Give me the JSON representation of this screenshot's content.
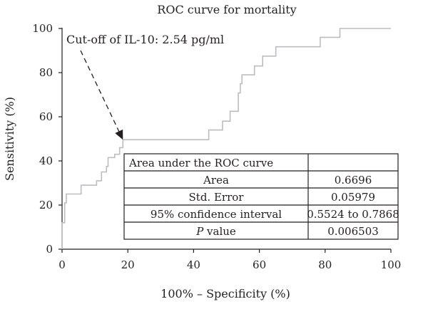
{
  "chart_data": {
    "type": "line",
    "title": "ROC curve for mortality",
    "xlabel": "100% – Specificity (%)",
    "ylabel": "Sensitivity (%)",
    "xlim": [
      0,
      100
    ],
    "ylim": [
      0,
      100
    ],
    "xticks": [
      "0",
      "20",
      "40",
      "60",
      "80",
      "100"
    ],
    "yticks": [
      "0",
      "20",
      "40",
      "60",
      "80",
      "100"
    ],
    "grid": false,
    "line_color": "#bcbdc0",
    "series": [
      {
        "points": [
          [
            0,
            0
          ],
          [
            0,
            12
          ],
          [
            0.8,
            12
          ],
          [
            0.8,
            21
          ],
          [
            1.3,
            21
          ],
          [
            1.3,
            25
          ],
          [
            5.8,
            25
          ],
          [
            5.8,
            29
          ],
          [
            10.5,
            29
          ],
          [
            10.5,
            31
          ],
          [
            12,
            31
          ],
          [
            12,
            35
          ],
          [
            13.5,
            35
          ],
          [
            13.5,
            37.5
          ],
          [
            14,
            37.5
          ],
          [
            14,
            41.5
          ],
          [
            16,
            41.5
          ],
          [
            16,
            43
          ],
          [
            17.5,
            43
          ],
          [
            17.5,
            46
          ],
          [
            18.5,
            46
          ],
          [
            18.5,
            49.6
          ],
          [
            44.6,
            49.6
          ],
          [
            44.6,
            54
          ],
          [
            48.8,
            54
          ],
          [
            48.8,
            58
          ],
          [
            51.1,
            58
          ],
          [
            51.1,
            62.5
          ],
          [
            53.6,
            62.5
          ],
          [
            53.6,
            70.8
          ],
          [
            54.2,
            70.8
          ],
          [
            54.2,
            75
          ],
          [
            54.7,
            75
          ],
          [
            54.7,
            79
          ],
          [
            58.5,
            79
          ],
          [
            58.5,
            83
          ],
          [
            61,
            83
          ],
          [
            61,
            87.5
          ],
          [
            65,
            87.5
          ],
          [
            65,
            91.7
          ],
          [
            78.5,
            91.7
          ],
          [
            78.5,
            96
          ],
          [
            84.5,
            96
          ],
          [
            84.5,
            100
          ],
          [
            100,
            100
          ]
        ]
      }
    ],
    "annotation": {
      "text": "Cut-off of IL-10: 2.54 pg/ml",
      "points_to": [
        18.5,
        49.6
      ]
    },
    "table": {
      "header": "Area under the ROC curve",
      "rows": [
        {
          "label": "Area",
          "value": "0.6696"
        },
        {
          "label": "Std. Error",
          "value": "0.05979"
        },
        {
          "label": "95% confidence interval",
          "value": "0.5524 to 0.7868"
        },
        {
          "label": "P value",
          "value": "0.006503"
        }
      ]
    }
  }
}
